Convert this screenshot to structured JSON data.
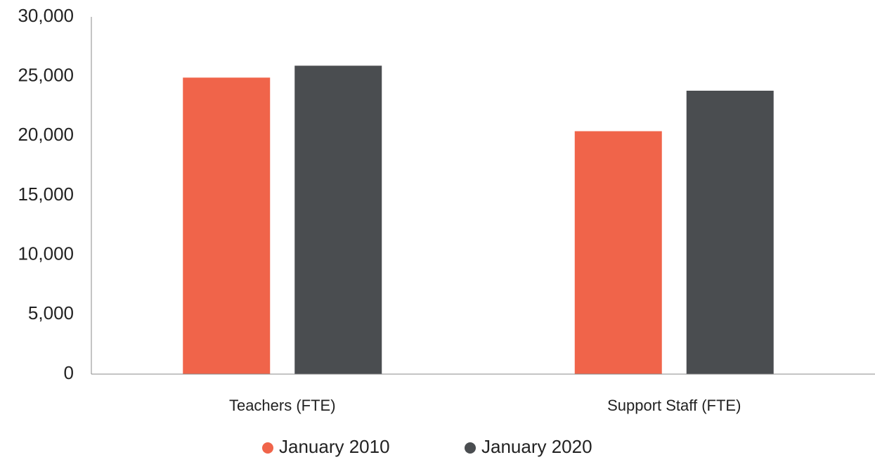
{
  "chart_data": {
    "type": "bar",
    "categories": [
      "Teachers (FTE)",
      "Support Staff (FTE)"
    ],
    "series": [
      {
        "name": "January 2010",
        "color": "#f0644a",
        "values": [
          24900,
          20400
        ]
      },
      {
        "name": "January 2020",
        "color": "#4a4d50",
        "values": [
          25900,
          23800
        ]
      }
    ],
    "ylim": [
      0,
      30000
    ],
    "yticks": [
      0,
      {
        "value": 5000,
        "label": "5,000"
      },
      {
        "value": 10000,
        "label": "10,000"
      },
      {
        "value": 15000,
        "label": "15,000"
      },
      {
        "value": 20000,
        "label": "20,000"
      },
      {
        "value": 25000,
        "label": "25,000"
      },
      {
        "value": 30000,
        "label": "30,000"
      }
    ],
    "grid": false,
    "legend": "bottom"
  }
}
